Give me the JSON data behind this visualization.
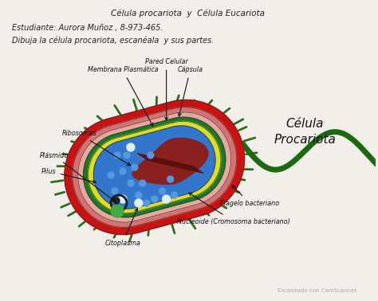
{
  "title_line1": "Célula procariota  y  Célula Eucariota",
  "title_line2": "Estudiante: Aurora Muñoz , 8-973-465.",
  "title_line3": "Dibuja la célula procariota, escanéala  y sus partes.",
  "cell_label_line1": "Célula",
  "cell_label_line2": "Procariota",
  "background_color": "#f2efeb",
  "watermark": "Escaneado con CamScanner",
  "colors": {
    "outer_spikes": "#2d6e1a",
    "capsule": "#cc1111",
    "cell_wall_outer": "#d97070",
    "cell_wall_inner": "#e8a8a0",
    "green_layer": "#1a7a2a",
    "yellow_layer": "#dddd22",
    "cytoplasm": "#3377cc",
    "nucleoid": "#8b2020",
    "flagellum": "#1a6a10",
    "plasmid_dot": "#1a1a1a",
    "ribosome_dot": "#5599dd",
    "white_dot": "#ddeeff"
  }
}
